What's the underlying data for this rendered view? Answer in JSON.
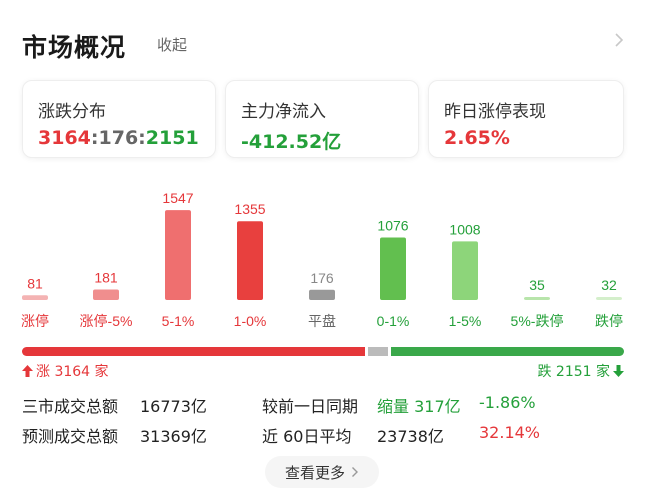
{
  "header": {
    "title": "市场概况",
    "collapse_label": "收起"
  },
  "cards": [
    {
      "label": "涨跌分布",
      "up": "3164",
      "sep1": ":",
      "flat": "176",
      "sep2": ":",
      "down": "2151"
    },
    {
      "label": "主力净流入",
      "value": "-412.52亿"
    },
    {
      "label": "昨日涨停表现",
      "value": "2.65%"
    }
  ],
  "chart_data": {
    "type": "bar",
    "categories": [
      "涨停",
      "涨停-5%",
      "5-1%",
      "1-0%",
      "平盘",
      "0-1%",
      "1-5%",
      "5%-跌停",
      "跌停"
    ],
    "values": [
      81,
      181,
      1547,
      1355,
      176,
      1076,
      1008,
      35,
      32
    ],
    "colors": [
      "#f4b3b3",
      "#f08e8e",
      "#ef6f6f",
      "#e8403e",
      "#999999",
      "#62bf4f",
      "#8dd57a",
      "#b8e5ab",
      "#d4efcb"
    ],
    "label_colors": [
      "#e5373a",
      "#e5373a",
      "#e5373a",
      "#e5373a",
      "#666666",
      "#24a03a",
      "#24a03a",
      "#24a03a",
      "#24a03a"
    ],
    "value_colors": [
      "#e5373a",
      "#e5373a",
      "#e5373a",
      "#e5373a",
      "#888888",
      "#24a03a",
      "#24a03a",
      "#24a03a",
      "#24a03a"
    ],
    "xlabel": "",
    "ylabel": "",
    "ylim": [
      0,
      1600
    ]
  },
  "ratio": {
    "up_count": 3164,
    "flat_count": 176,
    "down_count": 2151,
    "up_label": "涨 3164 家",
    "down_label": "跌 2151 家",
    "up_color": "#e5373a",
    "flat_color": "#bbbbbb",
    "down_color": "#3aa84a"
  },
  "stats": {
    "row1": {
      "label": "三市成交总额",
      "value": "16773亿",
      "label2": "较前一日同期",
      "value2": "缩量 317亿",
      "value3": "-1.86%"
    },
    "row2": {
      "label": "预测成交总额",
      "value": "31369亿",
      "label2": "近 60日平均",
      "value2": "23738亿",
      "value3": "32.14%"
    }
  },
  "more_label": "查看更多"
}
